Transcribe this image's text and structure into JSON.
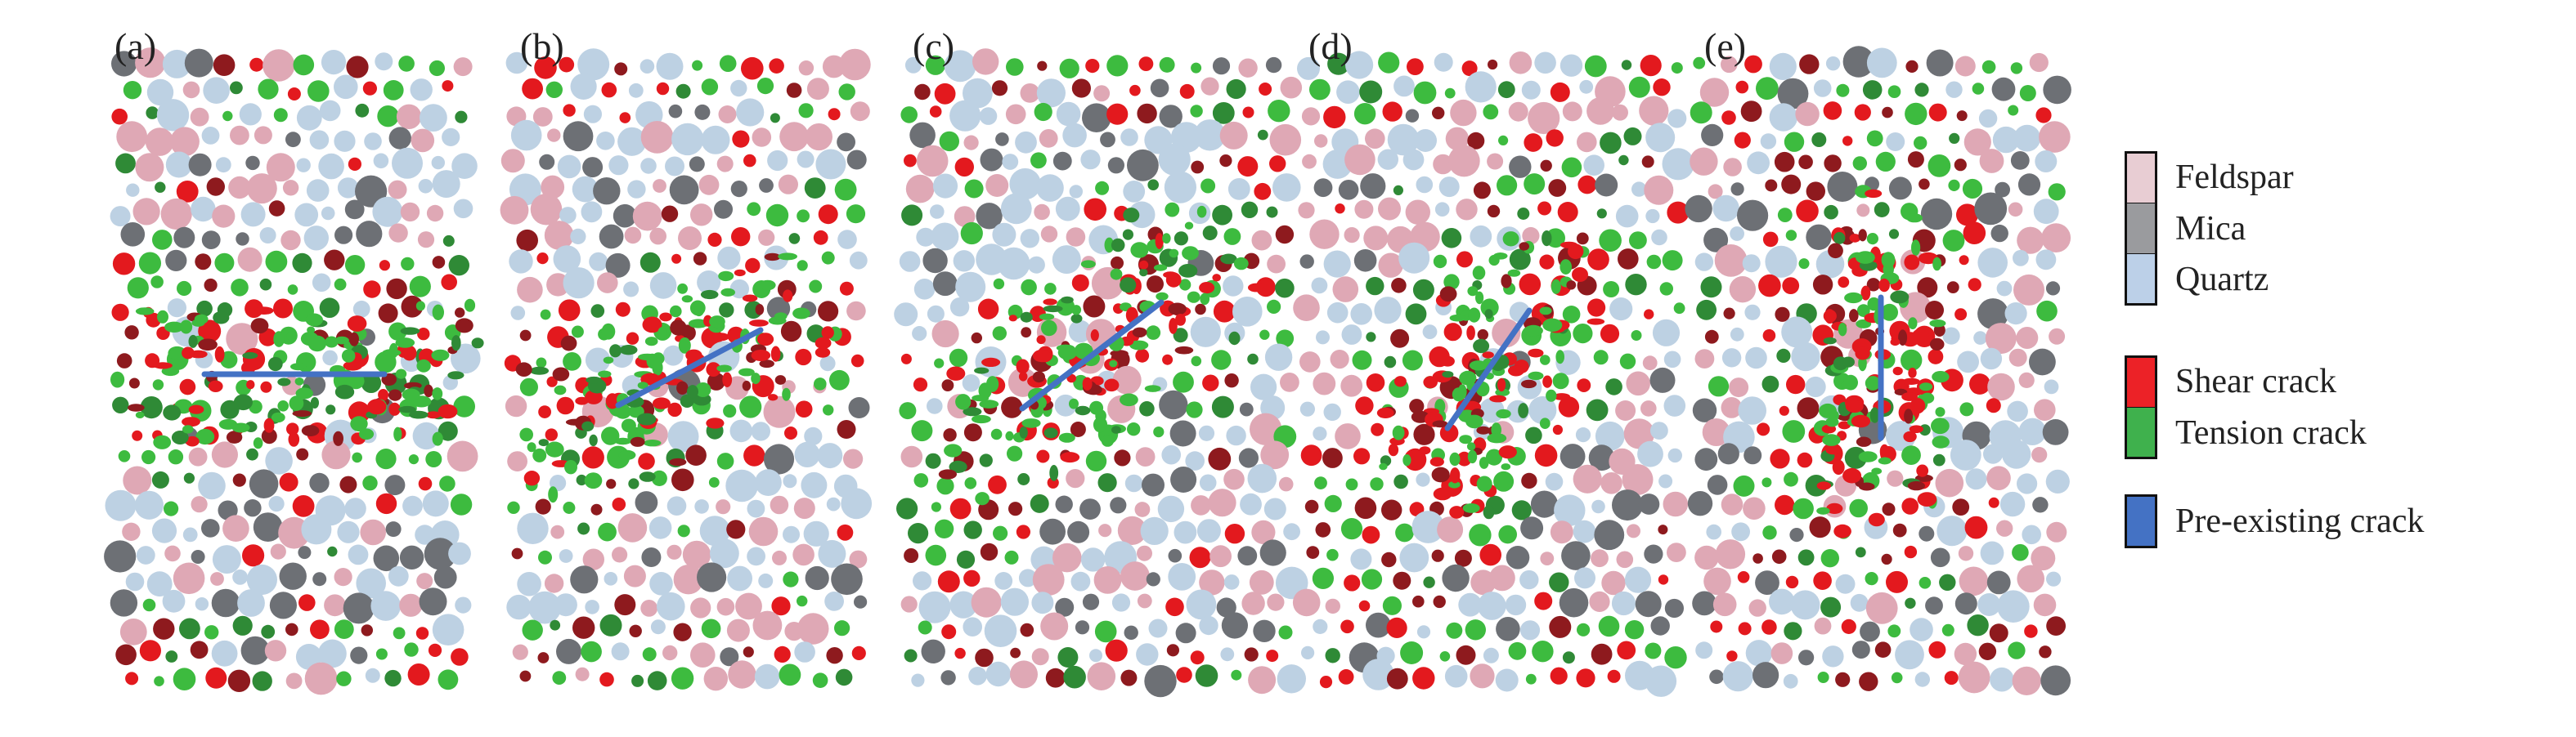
{
  "panels": [
    {
      "label": "(a)"
    },
    {
      "label": "(b)"
    },
    {
      "label": "(c)"
    },
    {
      "label": "(d)"
    },
    {
      "label": "(e)"
    }
  ],
  "legend": {
    "minerals": [
      {
        "label": "Feldspar",
        "color": "#e8cdd3"
      },
      {
        "label": "Mica",
        "color": "#9a9b9e"
      },
      {
        "label": "Quartz",
        "color": "#bcd0e8"
      }
    ],
    "cracks": [
      {
        "label": "Shear crack",
        "color": "#ec2227"
      },
      {
        "label": "Tension crack",
        "color": "#3fb14d"
      }
    ],
    "pre_existing": {
      "label": "Pre-existing crack",
      "color": "#4472c4"
    }
  },
  "particle_colors": {
    "feldspar": "#dfa8b5",
    "mica": "#6d7075",
    "quartz": "#bdd1e3",
    "shear": "#e3191e",
    "shear_dark": "#8e1a1e",
    "tension": "#3dbb3f",
    "tension_dark": "#2f8a36"
  }
}
